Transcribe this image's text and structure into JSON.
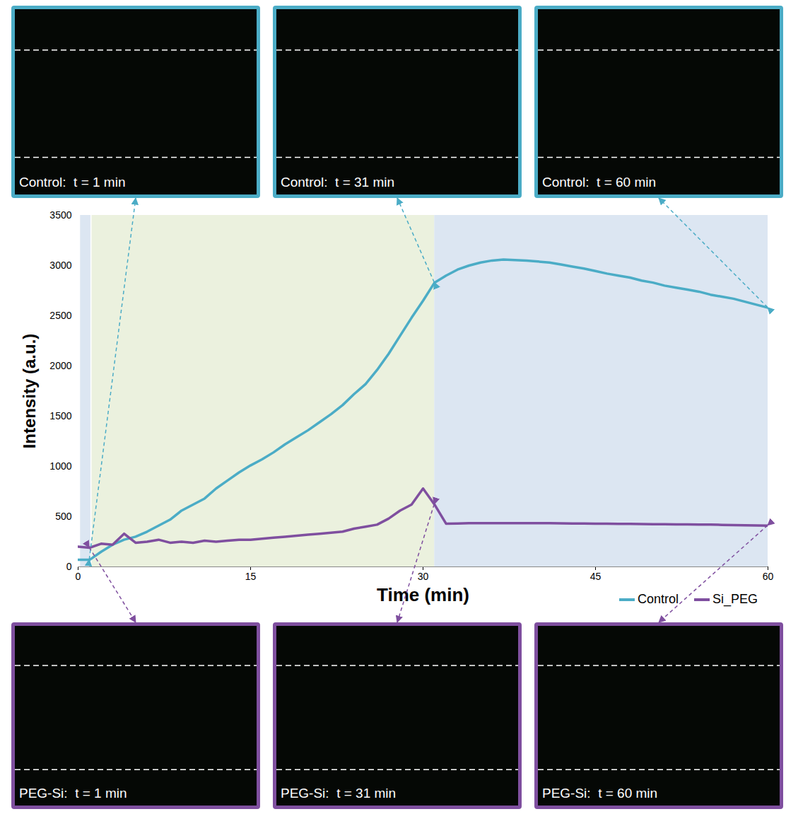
{
  "chart_data": {
    "type": "line",
    "x_label": "Time (min)",
    "y_label": "Intensity (a.u.)",
    "xlim": [
      0,
      60
    ],
    "xticks": [
      0,
      15,
      30,
      45,
      60
    ],
    "ylim": [
      0,
      3500
    ],
    "yticks": [
      0,
      500,
      1000,
      1500,
      2000,
      2500,
      3000,
      3500
    ],
    "grid": false,
    "legend": "bottom-right",
    "x": [
      0,
      1,
      2,
      3,
      4,
      5,
      6,
      7,
      8,
      9,
      10,
      11,
      12,
      13,
      14,
      15,
      16,
      17,
      18,
      19,
      20,
      21,
      22,
      23,
      24,
      25,
      26,
      27,
      28,
      29,
      30,
      31,
      32,
      33,
      34,
      35,
      36,
      37,
      38,
      39,
      40,
      41,
      42,
      43,
      44,
      45,
      46,
      47,
      48,
      49,
      50,
      51,
      52,
      53,
      54,
      55,
      56,
      57,
      58,
      59,
      60
    ],
    "series": [
      {
        "name": "Control",
        "color": "#4bacc6",
        "values": [
          70,
          70,
          150,
          220,
          270,
          300,
          350,
          410,
          470,
          560,
          620,
          680,
          780,
          860,
          940,
          1010,
          1070,
          1140,
          1220,
          1290,
          1360,
          1440,
          1520,
          1610,
          1720,
          1820,
          1960,
          2120,
          2300,
          2480,
          2650,
          2830,
          2900,
          2960,
          3000,
          3030,
          3050,
          3060,
          3055,
          3050,
          3040,
          3030,
          3010,
          2990,
          2970,
          2945,
          2920,
          2900,
          2880,
          2850,
          2830,
          2800,
          2780,
          2760,
          2740,
          2710,
          2690,
          2670,
          2640,
          2610,
          2580
        ]
      },
      {
        "name": "Si_PEG",
        "color": "#7f4f9f",
        "values": [
          200,
          190,
          230,
          220,
          330,
          240,
          250,
          270,
          240,
          250,
          240,
          260,
          250,
          260,
          270,
          270,
          280,
          290,
          300,
          310,
          320,
          330,
          340,
          350,
          380,
          400,
          420,
          480,
          560,
          620,
          780,
          620,
          430,
          432,
          434,
          435,
          435,
          435,
          435,
          435,
          435,
          434,
          433,
          432,
          431,
          430,
          429,
          428,
          427,
          426,
          425,
          424,
          423,
          422,
          421,
          420,
          418,
          416,
          414,
          412,
          410
        ]
      }
    ],
    "shaded_regions": [
      {
        "x0": 0.2,
        "x1": 1.1,
        "color": "#dce6f2"
      },
      {
        "x0": 1.2,
        "x1": 31,
        "color": "#ebf1de"
      },
      {
        "x0": 31,
        "x1": 60,
        "color": "#dce6f2"
      }
    ]
  },
  "panels": [
    {
      "label": "Control:  t = 1 min",
      "series": "Control",
      "time": 1
    },
    {
      "label": "Control:  t = 31 min",
      "series": "Control",
      "time": 31
    },
    {
      "label": "Control:  t = 60 min",
      "series": "Control",
      "time": 60
    },
    {
      "label": "PEG-Si:  t = 1 min",
      "series": "Si_PEG",
      "time": 1
    },
    {
      "label": "PEG-Si:  t = 31 min",
      "series": "Si_PEG",
      "time": 31
    },
    {
      "label": "PEG-Si:  t = 60 min",
      "series": "Si_PEG",
      "time": 60
    }
  ]
}
